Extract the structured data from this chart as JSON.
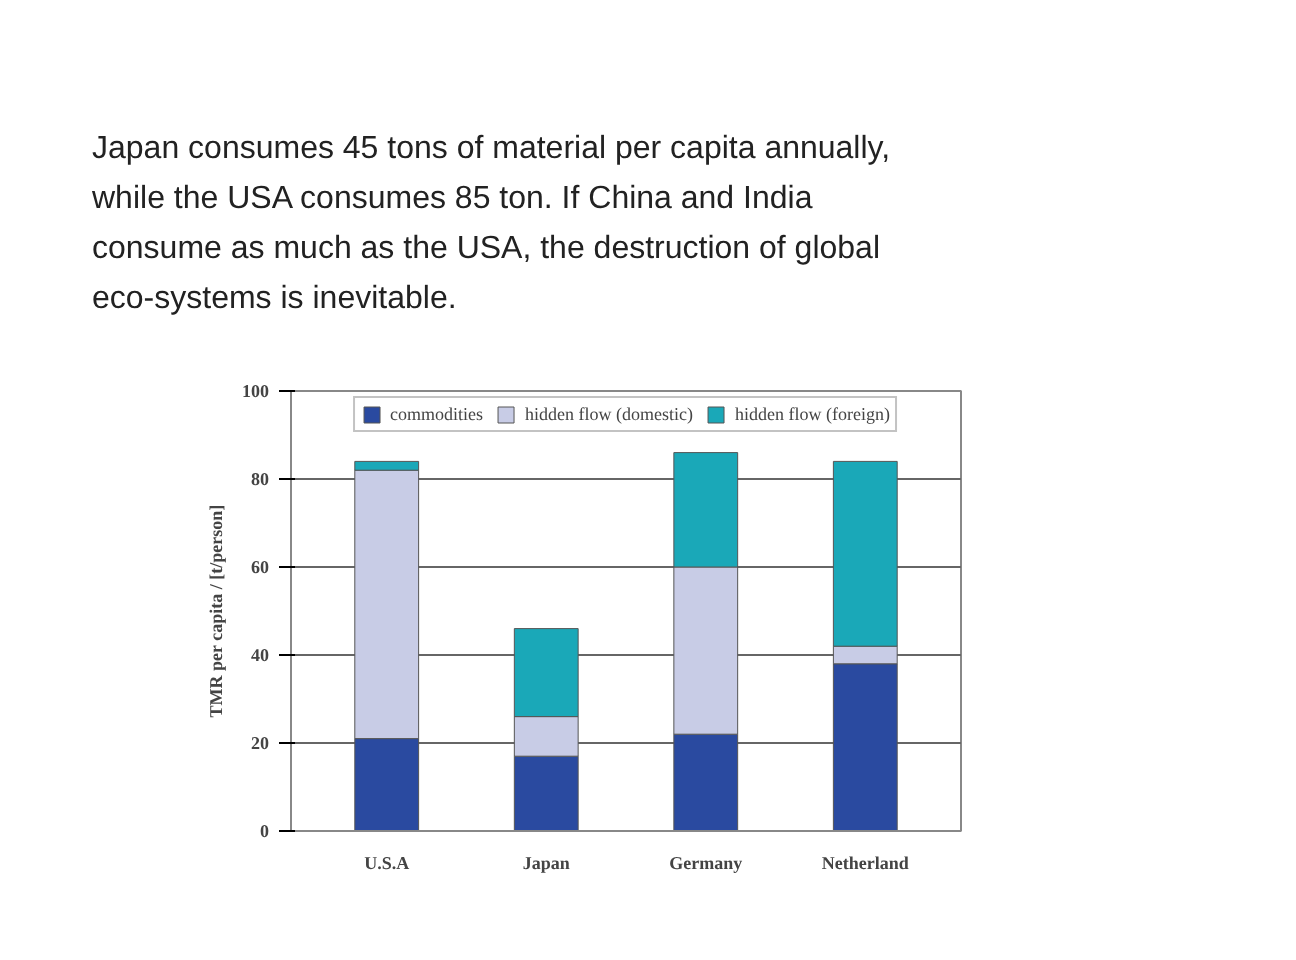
{
  "chart_data": {
    "type": "bar",
    "stacked": true,
    "title": "Japan consumes 45 tons of material per capita annually, while the USA consumes 85 ton. If China and India consume as much as the USA, the destruction of global eco-systems is inevitable.",
    "ylabel": "TMR per capita / [t/person]",
    "categories": [
      "U.S.A",
      "Japan",
      "Germany",
      "Netherland"
    ],
    "series": [
      {
        "name": "commodities",
        "color": "#2a4aa0",
        "values": [
          21,
          17,
          22,
          38
        ]
      },
      {
        "name": "hidden flow (domestic)",
        "color": "#c8cce6",
        "values": [
          61,
          9,
          38,
          4
        ]
      },
      {
        "name": "hidden flow (foreign)",
        "color": "#1aa8b8",
        "values": [
          2,
          20,
          26,
          42
        ]
      }
    ],
    "ylim": [
      0,
      100
    ],
    "yticks": [
      0,
      20,
      40,
      60,
      80,
      100
    ],
    "grid": "y",
    "legend": "top"
  }
}
